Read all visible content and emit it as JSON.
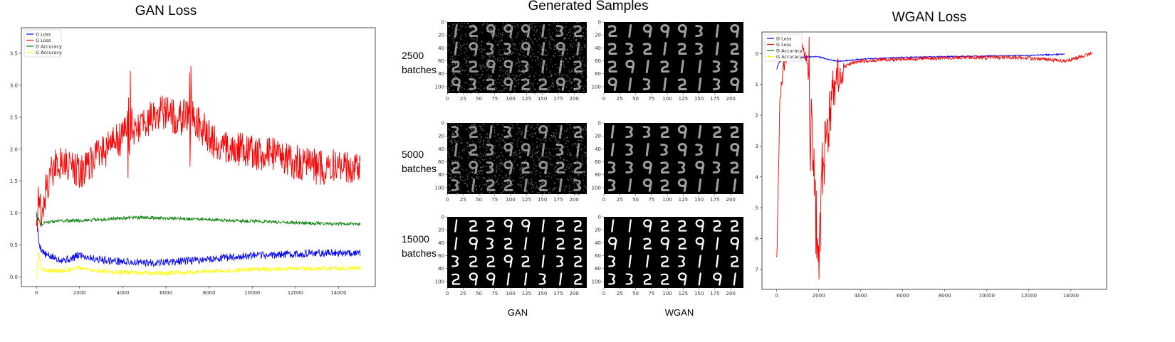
{
  "figure": {
    "samples_title": "Generated Samples",
    "column_labels": [
      "GAN",
      "WGAN"
    ],
    "row_labels": [
      {
        "count": "2500",
        "unit": "batches"
      },
      {
        "count": "5000",
        "unit": "batches"
      },
      {
        "count": "15000",
        "unit": "batches"
      }
    ],
    "grid_xticks": [
      0,
      25,
      50,
      75,
      100,
      125,
      150,
      175,
      200
    ],
    "grid_yticks": [
      0,
      20,
      40,
      60,
      80,
      100
    ],
    "grid_rows": 4,
    "grid_cols": 8
  },
  "chart_data": [
    {
      "type": "line",
      "title": "GAN Loss",
      "xlabel": "",
      "ylabel": "",
      "xlim": [
        -700,
        15700
      ],
      "ylim": [
        -0.15,
        3.9
      ],
      "xticks": [
        0,
        2000,
        4000,
        6000,
        8000,
        10000,
        12000,
        14000
      ],
      "yticks": [
        0.0,
        0.5,
        1.0,
        1.5,
        2.0,
        2.5,
        3.0,
        3.5
      ],
      "legend_position": "top-left",
      "grid": false,
      "series": [
        {
          "name": "D Loss",
          "color": "#0000ff",
          "x": [
            0,
            100,
            200,
            400,
            800,
            1200,
            1600,
            2000,
            2500,
            3000,
            4000,
            5000,
            6000,
            7000,
            8000,
            9000,
            10000,
            12000,
            14000,
            15000
          ],
          "y": [
            1.0,
            0.55,
            0.45,
            0.35,
            0.3,
            0.27,
            0.28,
            0.35,
            0.3,
            0.27,
            0.24,
            0.22,
            0.23,
            0.25,
            0.28,
            0.31,
            0.33,
            0.36,
            0.38,
            0.38
          ]
        },
        {
          "name": "G Loss",
          "color": "#ff0000",
          "x": [
            0,
            100,
            200,
            400,
            600,
            800,
            1000,
            1500,
            2000,
            2500,
            3000,
            3500,
            4000,
            4300,
            4600,
            5000,
            5500,
            6000,
            6500,
            7000,
            7500,
            8000,
            8500,
            9000,
            9500,
            10000,
            11000,
            12000,
            13000,
            14000,
            15000
          ],
          "y": [
            0.8,
            1.2,
            1.0,
            1.3,
            1.55,
            1.7,
            1.8,
            1.75,
            1.65,
            1.75,
            1.95,
            2.05,
            2.2,
            2.45,
            2.25,
            2.45,
            2.5,
            2.6,
            2.45,
            2.55,
            2.4,
            2.2,
            2.05,
            1.95,
            2.0,
            1.95,
            1.9,
            1.8,
            1.72,
            1.72,
            1.74
          ]
        },
        {
          "name": "D Accuracy",
          "color": "#008000",
          "x": [
            0,
            100,
            200,
            400,
            800,
            1500,
            2000,
            3000,
            4000,
            5000,
            6000,
            7000,
            8000,
            9000,
            10000,
            12000,
            14000,
            15000
          ],
          "y": [
            1.0,
            0.9,
            0.82,
            0.85,
            0.87,
            0.88,
            0.88,
            0.9,
            0.92,
            0.93,
            0.92,
            0.91,
            0.9,
            0.88,
            0.87,
            0.85,
            0.83,
            0.83
          ]
        },
        {
          "name": "G Accuracy",
          "color": "#ffff00",
          "x": [
            0,
            100,
            200,
            400,
            800,
            1200,
            1600,
            2000,
            2500,
            3000,
            4000,
            5000,
            6000,
            7000,
            8000,
            9000,
            10000,
            12000,
            14000,
            15000
          ],
          "y": [
            0.0,
            0.4,
            0.15,
            0.1,
            0.1,
            0.1,
            0.12,
            0.15,
            0.1,
            0.09,
            0.07,
            0.06,
            0.06,
            0.07,
            0.09,
            0.1,
            0.12,
            0.13,
            0.14,
            0.14
          ]
        }
      ]
    },
    {
      "type": "line",
      "title": "WGAN Loss",
      "xlabel": "",
      "ylabel": "",
      "xlim": [
        -700,
        15700
      ],
      "ylim": [
        -7.65,
        0.7
      ],
      "xticks": [
        0,
        2000,
        4000,
        6000,
        8000,
        10000,
        12000,
        14000
      ],
      "yticks": [
        0,
        -1,
        -2,
        -3,
        -4,
        -5,
        -6,
        -7
      ],
      "legend_position": "top-left",
      "grid": false,
      "series": [
        {
          "name": "D Loss",
          "color": "#0000ff",
          "x": [
            0,
            100,
            300,
            500,
            800,
            1000,
            1500,
            2000,
            2500,
            3000,
            4000,
            6000,
            8000,
            10000,
            12000,
            13700
          ],
          "y": [
            -0.5,
            -0.3,
            -0.15,
            -0.1,
            -0.12,
            -0.15,
            -0.1,
            -0.1,
            -0.2,
            -0.25,
            -0.18,
            -0.12,
            -0.1,
            -0.08,
            -0.06,
            -0.02
          ]
        },
        {
          "name": "G Loss",
          "color": "#ff0000",
          "x": [
            0,
            150,
            300,
            500,
            700,
            900,
            1100,
            1300,
            1500,
            1700,
            1900,
            2000,
            2100,
            2200,
            2400,
            2600,
            2800,
            3000,
            3400,
            4000,
            5000,
            6000,
            7000,
            8000,
            9000,
            10000,
            11000,
            12000,
            13000,
            13700,
            15000
          ],
          "y": [
            -6.9,
            -1.5,
            -0.5,
            0.05,
            0.15,
            0.1,
            0.0,
            0.15,
            -0.6,
            -3.5,
            -5.8,
            -7.1,
            -4.6,
            -3.5,
            -2.8,
            -1.5,
            -1.0,
            -0.6,
            -0.35,
            -0.25,
            -0.2,
            -0.18,
            -0.15,
            -0.15,
            -0.12,
            -0.13,
            -0.12,
            -0.15,
            -0.2,
            -0.25,
            0.0
          ]
        },
        {
          "name": "D Accuracy",
          "color": "#008000",
          "x": [],
          "y": []
        },
        {
          "name": "G Accuracy",
          "color": "#ffff00",
          "x": [],
          "y": []
        }
      ]
    }
  ]
}
